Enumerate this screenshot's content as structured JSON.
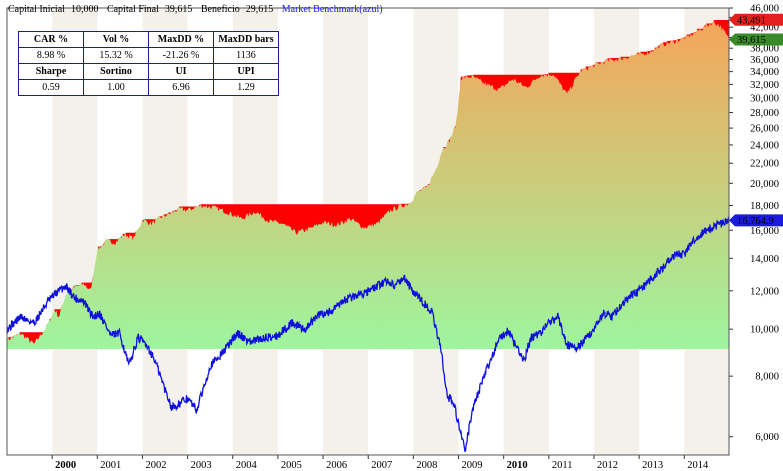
{
  "header": {
    "capital_inicial_label": "Capital Inicial",
    "capital_inicial_value": "10,000",
    "capital_final_label": "Capital Final",
    "capital_final_value": "39,615",
    "beneficio_label": "Beneficio",
    "beneficio_value": "29,615",
    "benchmark_label": "Market Benchmark(azul)"
  },
  "stats": {
    "row1_labels": [
      "CAR %",
      "Vol %",
      "MaxDD %",
      "MaxDD bars"
    ],
    "row1_values": [
      "8.98 %",
      "15.32 %",
      "-21.26 %",
      "1136"
    ],
    "row2_labels": [
      "Sharpe",
      "Sortino",
      "UI",
      "UPI"
    ],
    "row2_values": [
      "0.59",
      "1.00",
      "6.96",
      "1.29"
    ]
  },
  "chart_data": {
    "type": "line",
    "scale": "log",
    "ylim": [
      5500,
      46000
    ],
    "xlim": [
      1999.0,
      2014.99
    ],
    "y_ticks": [
      "6,000",
      "8,000",
      "10,000",
      "12,000",
      "14,000",
      "16,000",
      "18,000",
      "20,000",
      "22,000",
      "24,000",
      "26,000",
      "28,000",
      "30,000",
      "32,000",
      "34,000",
      "36,000",
      "38,000",
      "40,000",
      "42,000",
      "44,000",
      "46,000"
    ],
    "y_tick_values": [
      6000,
      8000,
      10000,
      12000,
      14000,
      16000,
      18000,
      20000,
      22000,
      24000,
      26000,
      28000,
      30000,
      32000,
      34000,
      36000,
      38000,
      40000,
      42000,
      44000,
      46000
    ],
    "x_ticks": [
      "2000",
      "2001",
      "2002",
      "2003",
      "2004",
      "2005",
      "2006",
      "2007",
      "2008",
      "2009",
      "2010",
      "2011",
      "2012",
      "2013",
      "2014"
    ],
    "x_tick_bold": [
      "2000",
      "2010"
    ],
    "x_tick_values": [
      2000,
      2001,
      2002,
      2003,
      2004,
      2005,
      2006,
      2007,
      2008,
      2009,
      2010,
      2011,
      2012,
      2013,
      2014
    ],
    "last_labels": {
      "peak": "43,491",
      "equity": "39,615",
      "benchmark": "16,764.9"
    },
    "colors": {
      "drawdown": "#ff0000",
      "benchmark": "#1010dd",
      "fill_top": "#f5a55a",
      "fill_bottom": "#9ef59e",
      "peak_label_bg": "#e32020",
      "equity_label_bg": "#3a8a2a",
      "benchmark_label_bg": "#1a1ae0"
    },
    "fill_base": 9100,
    "series": [
      {
        "role": "equity",
        "x": [
          1999.0,
          1999.3,
          1999.6,
          1999.9,
          2000.05,
          2000.15,
          2000.3,
          2000.5,
          2000.7,
          2000.85,
          2001.0,
          2001.2,
          2001.4,
          2001.6,
          2001.8,
          2002.0,
          2002.2,
          2002.4,
          2002.6,
          2002.8,
          2003.0,
          2003.3,
          2003.6,
          2003.9,
          2004.2,
          2004.5,
          2004.8,
          2005.1,
          2005.4,
          2005.7,
          2006.0,
          2006.3,
          2006.6,
          2006.9,
          2007.2,
          2007.5,
          2007.7,
          2007.9,
          2008.1,
          2008.3,
          2008.5,
          2008.65,
          2008.8,
          2008.95,
          2009.05,
          2009.3,
          2009.6,
          2009.9,
          2010.2,
          2010.5,
          2010.8,
          2011.1,
          2011.4,
          2011.7,
          2012.0,
          2012.3,
          2012.6,
          2012.9,
          2013.2,
          2013.5,
          2013.8,
          2014.1,
          2014.4,
          2014.65,
          2014.8,
          2014.99
        ],
        "y": [
          9500,
          9800,
          9300,
          10200,
          11000,
          10600,
          11800,
          12200,
          12400,
          12000,
          14600,
          15200,
          15100,
          15700,
          15400,
          16800,
          16500,
          17000,
          17300,
          17700,
          17600,
          18000,
          17800,
          17400,
          16900,
          17500,
          16700,
          16500,
          15800,
          16100,
          16600,
          16400,
          16900,
          16200,
          16500,
          17600,
          17900,
          18200,
          19200,
          19600,
          21400,
          23600,
          24500,
          26500,
          33000,
          33200,
          32000,
          31200,
          32800,
          31500,
          33400,
          33600,
          30500,
          34100,
          35000,
          35800,
          36200,
          36700,
          37200,
          38600,
          39300,
          40200,
          41800,
          43000,
          42200,
          39615
        ]
      },
      {
        "role": "peak",
        "x": [
          1999.0,
          1999.9,
          2000.05,
          2000.5,
          2000.85,
          2001.0,
          2001.6,
          2002.0,
          2002.6,
          2002.8,
          2003.3,
          2007.9,
          2008.1,
          2008.3,
          2008.5,
          2008.65,
          2008.8,
          2008.95,
          2009.05,
          2010.2,
          2010.5,
          2011.1,
          2011.7,
          2012.0,
          2012.3,
          2012.6,
          2012.9,
          2013.2,
          2013.5,
          2013.8,
          2014.1,
          2014.4,
          2014.65,
          2014.99
        ],
        "y": [
          9500,
          10200,
          11000,
          12200,
          12400,
          14600,
          15700,
          16800,
          17300,
          17700,
          18000,
          18200,
          19200,
          19600,
          21400,
          23600,
          24500,
          26500,
          33200,
          33200,
          33200,
          33600,
          34100,
          35000,
          35800,
          36200,
          36700,
          37200,
          38600,
          39300,
          40200,
          41800,
          43491,
          43491
        ]
      },
      {
        "role": "benchmark",
        "name": "Market Benchmark(azul)",
        "x": [
          1999.0,
          1999.3,
          1999.6,
          1999.9,
          2000.1,
          2000.3,
          2000.5,
          2000.7,
          2000.9,
          2001.05,
          2001.3,
          2001.5,
          2001.7,
          2001.9,
          2002.1,
          2002.3,
          2002.5,
          2002.65,
          2002.8,
          2003.0,
          2003.2,
          2003.5,
          2003.8,
          2004.1,
          2004.4,
          2004.7,
          2005.0,
          2005.3,
          2005.6,
          2005.9,
          2006.2,
          2006.5,
          2006.8,
          2007.1,
          2007.4,
          2007.6,
          2007.8,
          2008.0,
          2008.2,
          2008.4,
          2008.6,
          2008.75,
          2008.9,
          2009.05,
          2009.15,
          2009.3,
          2009.5,
          2009.7,
          2009.9,
          2010.1,
          2010.3,
          2010.45,
          2010.6,
          2010.8,
          2011.0,
          2011.2,
          2011.4,
          2011.6,
          2011.8,
          2012.0,
          2012.2,
          2012.4,
          2012.6,
          2012.8,
          2013.0,
          2013.2,
          2013.4,
          2013.6,
          2013.8,
          2014.0,
          2014.2,
          2014.4,
          2014.6,
          2014.8,
          2014.99
        ],
        "y": [
          10000,
          10600,
          10300,
          11400,
          11900,
          12300,
          11600,
          11400,
          10600,
          10800,
          9700,
          9800,
          8400,
          9600,
          9300,
          8500,
          7500,
          6900,
          7000,
          7200,
          6800,
          8400,
          9000,
          9800,
          9400,
          9600,
          9700,
          10300,
          10000,
          10700,
          10900,
          11500,
          11800,
          12100,
          12600,
          12300,
          12800,
          11900,
          11400,
          10900,
          9200,
          7300,
          7000,
          6100,
          5600,
          6800,
          7700,
          8600,
          9600,
          9900,
          9100,
          8600,
          9600,
          9800,
          10300,
          10600,
          9300,
          9100,
          9500,
          10000,
          10800,
          10600,
          11200,
          11700,
          12000,
          12500,
          13100,
          13600,
          14300,
          14200,
          15300,
          15800,
          16200,
          16500,
          16764.9
        ]
      }
    ]
  }
}
